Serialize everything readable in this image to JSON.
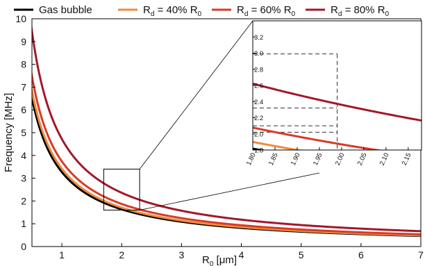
{
  "chart_data": {
    "type": "line",
    "xlabel": "R",
    "xlabel_sub": "0",
    "xlabel_unit": " [μm]",
    "ylabel": "Frequency [MHz]",
    "xlim": [
      0.5,
      7
    ],
    "ylim": [
      0,
      10
    ],
    "xticks": [
      1,
      2,
      3,
      4,
      5,
      6,
      7
    ],
    "yticks": [
      0,
      1,
      2,
      3,
      4,
      5,
      6,
      7,
      8,
      9,
      10
    ],
    "grid": false,
    "legend_position": "top",
    "series": [
      {
        "name": "Gas bubble",
        "color": "#000000",
        "coefficient": 3.27,
        "label_main": "Gas bubble",
        "label_sub": "",
        "label_tail": ""
      },
      {
        "name": "Rd = 40% R0",
        "color": "#ef8a3c",
        "coefficient": 3.42,
        "label_main": "R",
        "label_sub": "d",
        "label_tail": " = 40% R",
        "label_tail_sub": "0"
      },
      {
        "name": "Rd = 60% R0",
        "color": "#d93a26",
        "coefficient": 3.74,
        "label_main": "R",
        "label_sub": "d",
        "label_tail": " = 60% R",
        "label_tail_sub": "0"
      },
      {
        "name": "Rd = 80% R0",
        "color": "#a3172b",
        "coefficient": 4.72,
        "label_main": "R",
        "label_sub": "d",
        "label_tail": " = 80% R",
        "label_tail_sub": "0"
      }
    ],
    "zoom_box": {
      "x": [
        1.7,
        2.3
      ],
      "y": [
        1.6,
        3.4
      ]
    },
    "inset": {
      "xlim": [
        1.8,
        2.18
      ],
      "ylim": [
        1.8,
        3.4
      ],
      "xticks": [
        "1.80",
        "1.85",
        "1.90",
        "1.95",
        "2.00",
        "2.05",
        "2.10",
        "2.15"
      ],
      "xtick_values": [
        1.8,
        1.85,
        1.9,
        1.95,
        2.0,
        2.05,
        2.1,
        2.15
      ],
      "yticks": [
        "1.8",
        "2.0",
        "2.2",
        "2.4",
        "2.6",
        "2.8",
        "3.0",
        "3.2"
      ],
      "ytick_values": [
        1.8,
        2.0,
        2.2,
        2.4,
        2.6,
        2.8,
        3.0,
        3.2
      ],
      "reference_x": 1.99,
      "reference_y": [
        2.02,
        2.1,
        2.32,
        2.99
      ]
    }
  }
}
